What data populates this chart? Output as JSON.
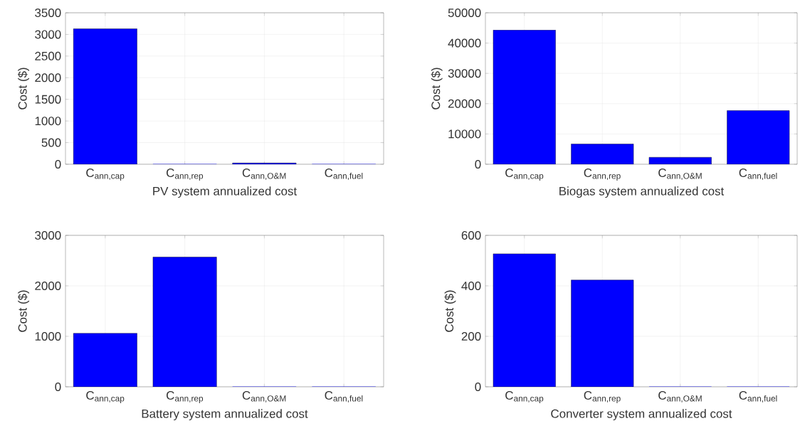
{
  "chart_data": [
    {
      "type": "bar",
      "categories": [
        "C$_{ann,cap}$",
        "C$_{ann,rep}$",
        "C$_{ann,O&M}$",
        "C$_{ann,fuel}$"
      ],
      "values": [
        3130,
        0,
        30,
        0
      ],
      "color": "#0000ff",
      "ylim": [
        0,
        3500
      ],
      "yticks": [
        0,
        500,
        1000,
        1500,
        2000,
        2500,
        3000,
        3500
      ],
      "xlabel": "PV system annualized cost",
      "ylabel": "Cost ($)",
      "grid": true
    },
    {
      "type": "bar",
      "categories": [
        "C$_{ann,cap}$",
        "C$_{ann,rep}$",
        "C$_{ann,O&M}$",
        "C$_{ann,fuel}$"
      ],
      "values": [
        44300,
        6700,
        2300,
        17700
      ],
      "color": "#0000ff",
      "ylim": [
        0,
        50000
      ],
      "yticks": [
        0,
        10000,
        20000,
        30000,
        40000,
        50000
      ],
      "xlabel": "Biogas system annualized cost",
      "ylabel": "Cost ($)",
      "grid": true
    },
    {
      "type": "bar",
      "categories": [
        "C$_{ann,cap}$",
        "C$_{ann,rep}$",
        "C$_{ann,O&M}$",
        "C$_{ann,fuel}$"
      ],
      "values": [
        1060,
        2570,
        0,
        0
      ],
      "color": "#0000ff",
      "ylim": [
        0,
        3000
      ],
      "yticks": [
        0,
        1000,
        2000,
        3000
      ],
      "xlabel": "Battery system annualized cost",
      "ylabel": "Cost ($)",
      "grid": true
    },
    {
      "type": "bar",
      "categories": [
        "C$_{ann,cap}$",
        "C$_{ann,rep}$",
        "C$_{ann,O&M}$",
        "C$_{ann,fuel}$"
      ],
      "values": [
        527,
        423,
        0,
        0
      ],
      "color": "#0000ff",
      "ylim": [
        0,
        600
      ],
      "yticks": [
        0,
        200,
        400,
        600
      ],
      "xlabel": "Converter system annualized cost",
      "ylabel": "Cost ($)",
      "grid": true
    }
  ]
}
